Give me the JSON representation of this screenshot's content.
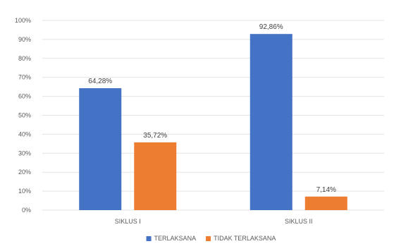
{
  "chart_data": {
    "type": "bar",
    "categories": [
      "SIKLUS I",
      "SIKLUS II"
    ],
    "series": [
      {
        "name": "TERLAKSANA",
        "values": [
          64.28,
          92.86
        ],
        "labels": [
          "64,28%",
          "92,86%"
        ],
        "color": "#4472C4"
      },
      {
        "name": "TIDAK TERLAKSANA",
        "values": [
          35.72,
          7.14
        ],
        "labels": [
          "35,72%",
          "7,14%"
        ],
        "color": "#ED7D31"
      }
    ],
    "ylim": [
      0,
      100
    ],
    "yticks": [
      0,
      10,
      20,
      30,
      40,
      50,
      60,
      70,
      80,
      90,
      100
    ],
    "ytick_labels": [
      "0%",
      "10%",
      "20%",
      "30%",
      "40%",
      "50%",
      "60%",
      "70%",
      "80%",
      "90%",
      "100%"
    ],
    "grid": true,
    "grid_color": "#e3e3e3",
    "legend_position": "bottom-center"
  }
}
